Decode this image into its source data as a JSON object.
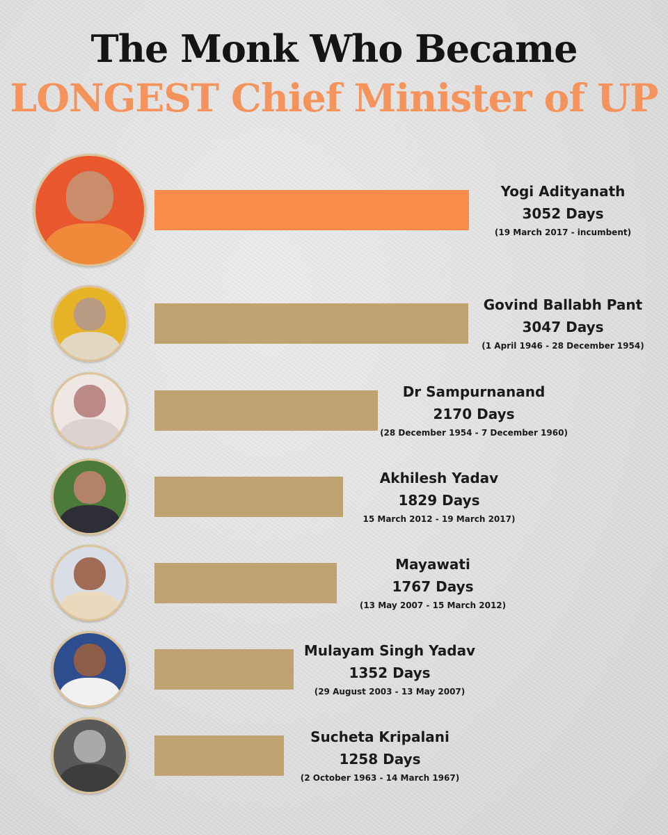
{
  "title_line1": "The Monk Who Became",
  "title_line2": "LONGEST Chief Minister of UP",
  "colors": {
    "title_dark": "#141414",
    "title_accent": "#f4935b",
    "highlight_bar": "#fa8c4a",
    "default_bar": "#bfa270",
    "avatar_border": "#ddc39a"
  },
  "chart_data": {
    "type": "bar",
    "orientation": "horizontal",
    "title": "The Monk Who Became LONGEST Chief Minister of UP",
    "categories": [
      "Yogi Adityanath",
      "Govind Ballabh Pant",
      "Dr Sampurnanand",
      "Akhilesh Yadav",
      "Mayawati",
      "Mulayam Singh Yadav",
      "Sucheta Kripalani"
    ],
    "values": [
      3052,
      3047,
      2170,
      1829,
      1767,
      1352,
      1258
    ],
    "unit": "Days",
    "highlight_index": 0,
    "grid": false,
    "legend": "none"
  },
  "entries": [
    {
      "name": "Yogi Adityanath",
      "days": "3052 Days",
      "dates": "(19 March 2017 - incumbent)",
      "photo_icon": "yogi-adityanath-photo-icon"
    },
    {
      "name": "Govind Ballabh Pant",
      "days": "3047 Days",
      "dates": "(1 April 1946 - 28 December 1954)",
      "photo_icon": "govind-ballabh-pant-photo-icon"
    },
    {
      "name": "Dr Sampurnanand",
      "days": "2170 Days",
      "dates": "(28 December 1954 - 7 December 1960)",
      "photo_icon": "sampurnanand-photo-icon"
    },
    {
      "name": "Akhilesh Yadav",
      "days": "1829 Days",
      "dates": "15 March 2012 - 19 March 2017)",
      "photo_icon": "akhilesh-yadav-photo-icon"
    },
    {
      "name": "Mayawati",
      "days": "1767 Days",
      "dates": "(13 May 2007 - 15 March 2012)",
      "photo_icon": "mayawati-photo-icon"
    },
    {
      "name": "Mulayam Singh Yadav",
      "days": "1352 Days",
      "dates": "(29 August 2003 - 13 May 2007)",
      "photo_icon": "mulayam-singh-yadav-photo-icon"
    },
    {
      "name": "Sucheta Kripalani",
      "days": "1258 Days",
      "dates": "(2 October 1963 - 14 March 1967)",
      "photo_icon": "sucheta-kripalani-photo-icon"
    }
  ]
}
